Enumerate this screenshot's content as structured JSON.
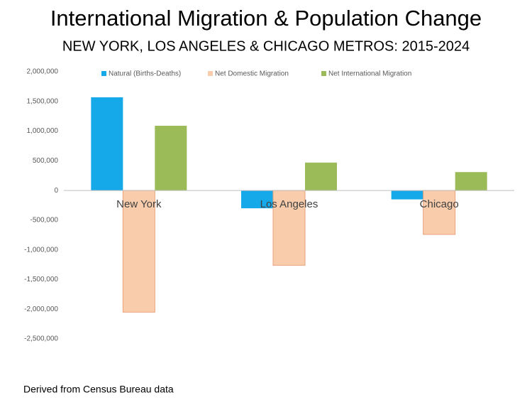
{
  "chart_data": {
    "type": "bar",
    "title": "International Migration & Population Change",
    "subtitle": "NEW YORK, LOS ANGELES & CHICAGO METROS: 2015-2024",
    "note": "Derived from Census Bureau data",
    "categories": [
      "New York",
      "Los Angeles",
      "Chicago"
    ],
    "series": [
      {
        "name": "Natural (Births-Deaths)",
        "color": "#16a9ea",
        "values": [
          1570000,
          -300000,
          -150000
        ]
      },
      {
        "name": "Net Domestic Migration",
        "color": "#f9cdac",
        "values": [
          -2050000,
          -1260000,
          -740000
        ]
      },
      {
        "name": "Net International Migration",
        "color": "#9bbb59",
        "values": [
          1090000,
          470000,
          310000
        ]
      }
    ],
    "ylim": [
      -2500000,
      2000000
    ],
    "yticks": [
      {
        "value": -2500000,
        "label": "-2,500,000"
      },
      {
        "value": -2000000,
        "label": "-2,000,000"
      },
      {
        "value": -1500000,
        "label": "-1,500,000"
      },
      {
        "value": -1000000,
        "label": "-1,000,000"
      },
      {
        "value": -500000,
        "label": "-500,000"
      },
      0,
      {
        "value": 500000,
        "label": "500,000"
      },
      {
        "value": 1000000,
        "label": "1,000,000"
      },
      {
        "value": 1500000,
        "label": "1,500,000"
      },
      {
        "value": 2000000,
        "label": "2,000,000"
      }
    ],
    "grid": false,
    "legend": "top"
  }
}
